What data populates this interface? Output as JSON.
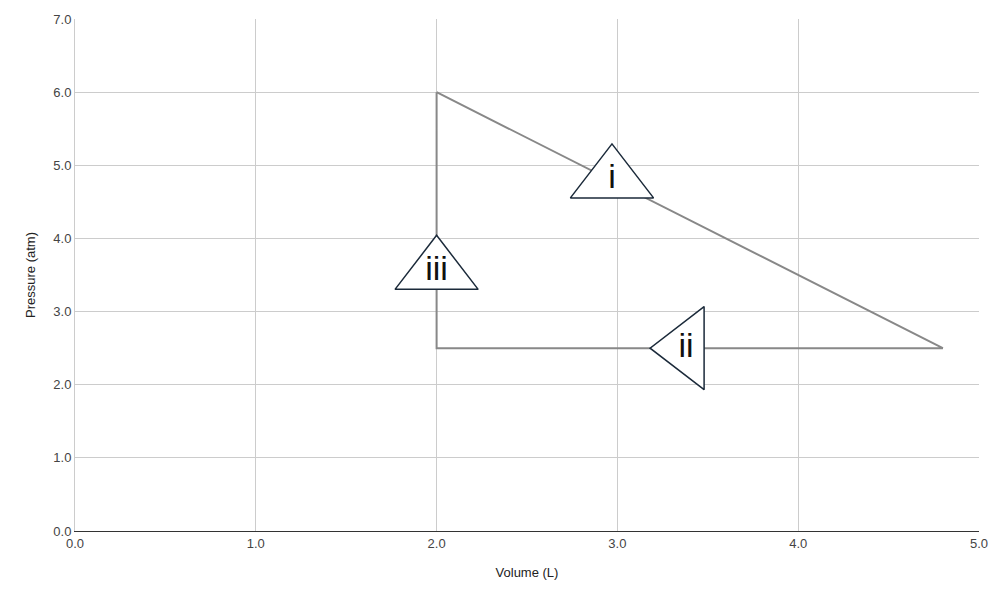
{
  "chart_data": {
    "type": "line",
    "x_label": "Volume (L)",
    "y_label": "Pressure (atm)",
    "series": [
      {
        "color": "#888888",
        "x": [
          2.0,
          4.8,
          2.0,
          2.0
        ],
        "values": [
          6.0,
          2.5,
          2.5,
          6.0
        ]
      }
    ],
    "annotations": [
      {
        "text": "i",
        "x": 2.97,
        "y": 4.8,
        "marker": "triangle-up"
      },
      {
        "text": "ii",
        "x": 3.38,
        "y": 2.5,
        "marker": "triangle-left"
      },
      {
        "text": "iii",
        "x": 2.0,
        "y": 3.55,
        "marker": "triangle-up"
      }
    ],
    "xlim": [
      0,
      5
    ],
    "ylim": [
      0,
      7
    ],
    "xticks": [
      {
        "value": 0,
        "label": "0.0"
      },
      {
        "value": 1,
        "label": "1.0"
      },
      {
        "value": 2,
        "label": "2.0"
      },
      {
        "value": 3,
        "label": "3.0"
      },
      {
        "value": 4,
        "label": "4.0"
      },
      {
        "value": 5,
        "label": "5.0"
      }
    ],
    "yticks": [
      {
        "value": 0,
        "label": "0.0"
      },
      {
        "value": 1,
        "label": "1.0"
      },
      {
        "value": 2,
        "label": "2.0"
      },
      {
        "value": 3,
        "label": "3.0"
      },
      {
        "value": 4,
        "label": "4.0"
      },
      {
        "value": 5,
        "label": "5.0"
      },
      {
        "value": 6,
        "label": "6.0"
      },
      {
        "value": 7,
        "label": "7.0"
      }
    ],
    "grid": true
  }
}
